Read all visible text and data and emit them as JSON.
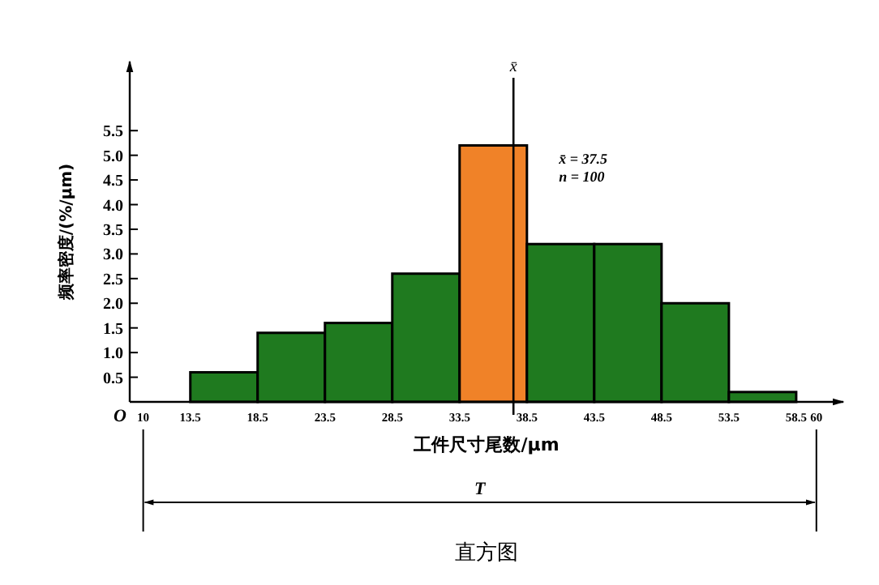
{
  "chart_data": {
    "type": "histogram",
    "title": "直方图",
    "xlabel": "工件尺寸尾数/μm",
    "ylabel": "频率密度/(%/μm)",
    "bins": [
      13.5,
      18.5,
      23.5,
      28.5,
      33.5,
      38.5,
      43.5,
      48.5,
      53.5,
      58.5
    ],
    "values": [
      0.6,
      1.4,
      1.6,
      2.6,
      5.2,
      3.2,
      3.2,
      2.0,
      0.2
    ],
    "colors": [
      "#1f7a1f",
      "#1f7a1f",
      "#1f7a1f",
      "#1f7a1f",
      "#f08228",
      "#1f7a1f",
      "#1f7a1f",
      "#1f7a1f",
      "#1f7a1f"
    ],
    "xlim": [
      9,
      62
    ],
    "ylim": [
      0,
      6.9
    ],
    "xticks": [
      10,
      13.5,
      18.5,
      23.5,
      28.5,
      33.5,
      38.5,
      43.5,
      48.5,
      53.5,
      58.5,
      60
    ],
    "yticks": [
      0.5,
      {
        "value": 1,
        "label": "1.0"
      },
      1.5,
      {
        "value": 2,
        "label": "2.0"
      },
      2.5,
      {
        "value": 3,
        "label": "3.0"
      },
      3.5,
      {
        "value": 4,
        "label": "4.0"
      },
      4.5,
      {
        "value": 5,
        "label": "5.0"
      },
      5.5
    ],
    "ref_lines": [
      {
        "axis": "x",
        "value": 37.5,
        "label": "x̄"
      }
    ],
    "annotations": [
      "x̄ = 37.5",
      "n = 100",
      "T",
      "O"
    ],
    "grid": false
  }
}
